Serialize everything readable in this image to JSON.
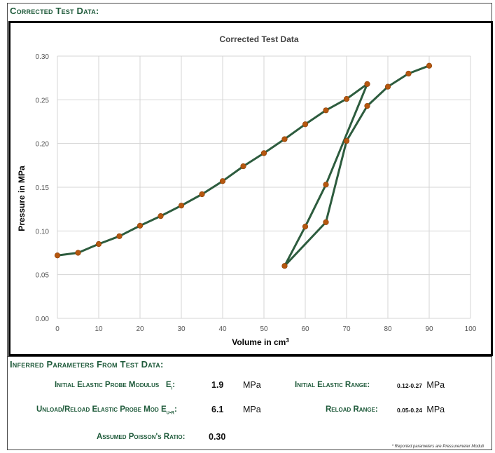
{
  "header": {
    "title": "Corrected Test Data:"
  },
  "chart_data": {
    "type": "line",
    "title": "Corrected Test Data",
    "xlabel": "Volume in cm",
    "xlabel_sup": "3",
    "ylabel": "Pressure in MPa",
    "xlim": [
      0,
      100
    ],
    "ylim": [
      0,
      0.3
    ],
    "x_ticks": [
      "0",
      "10",
      "20",
      "30",
      "40",
      "50",
      "60",
      "70",
      "80",
      "90",
      "100"
    ],
    "y_ticks": [
      "0.00",
      "0.05",
      "0.10",
      "0.15",
      "0.20",
      "0.25",
      "0.30"
    ],
    "grid": true,
    "line_color": "#2d5c3e",
    "marker_color": "#b5570f",
    "points": [
      {
        "x": 0,
        "y": 0.072
      },
      {
        "x": 5,
        "y": 0.075
      },
      {
        "x": 10,
        "y": 0.085
      },
      {
        "x": 15,
        "y": 0.094
      },
      {
        "x": 20,
        "y": 0.106
      },
      {
        "x": 25,
        "y": 0.117
      },
      {
        "x": 30,
        "y": 0.129
      },
      {
        "x": 35,
        "y": 0.142
      },
      {
        "x": 40,
        "y": 0.157
      },
      {
        "x": 45,
        "y": 0.174
      },
      {
        "x": 50,
        "y": 0.189
      },
      {
        "x": 55,
        "y": 0.205
      },
      {
        "x": 60,
        "y": 0.222
      },
      {
        "x": 65,
        "y": 0.238
      },
      {
        "x": 70,
        "y": 0.251
      },
      {
        "x": 75,
        "y": 0.268
      },
      {
        "x": 65,
        "y": 0.153
      },
      {
        "x": 60,
        "y": 0.105
      },
      {
        "x": 55,
        "y": 0.06
      },
      {
        "x": 65,
        "y": 0.11
      },
      {
        "x": 70,
        "y": 0.203
      },
      {
        "x": 75,
        "y": 0.243
      },
      {
        "x": 80,
        "y": 0.265
      },
      {
        "x": 85,
        "y": 0.28
      },
      {
        "x": 90,
        "y": 0.289
      }
    ]
  },
  "params": {
    "title": "Inferred Parameters From Test Data:",
    "initial_modulus_label": "Initial Elastic Probe Modulus",
    "initial_modulus_symbol": "E",
    "initial_modulus_sub": "i",
    "initial_modulus_value": "1.9",
    "initial_modulus_unit": "MPa",
    "reload_modulus_label": "Unload/Reload Elastic Probe Mod E",
    "reload_modulus_sub": "u-r",
    "reload_modulus_value": "6.1",
    "reload_modulus_unit": "MPa",
    "poisson_label": "Assumed Poisson's Ratio:",
    "poisson_value": "0.30",
    "initial_range_label": "Initial Elastic Range:",
    "initial_range_value": "0.12-0.27",
    "initial_range_unit": "MPa",
    "reload_range_label": "Reload Range:",
    "reload_range_value": "0.05-0.24",
    "reload_range_unit": "MPa",
    "note": "* Reported parameters are Pressuremeter Moduli"
  }
}
